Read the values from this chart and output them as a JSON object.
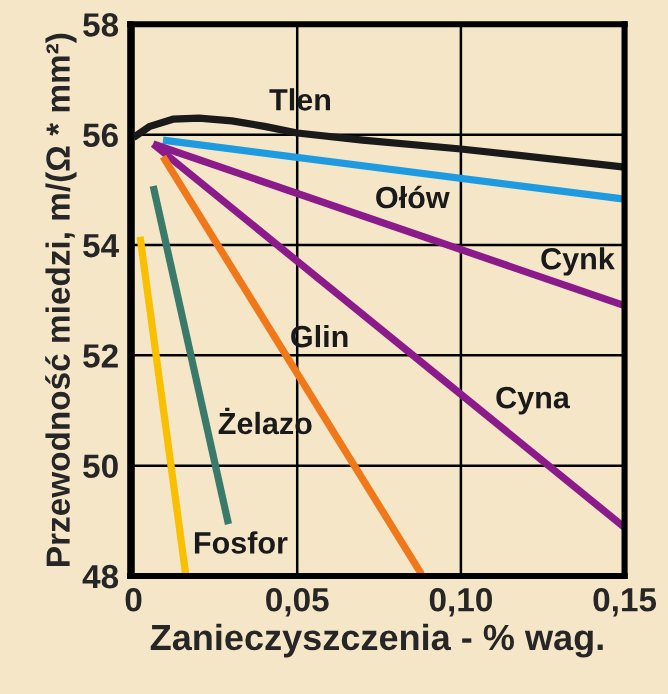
{
  "chart_data": {
    "type": "line",
    "xlabel": "Zanieczyszczenia - % wag.",
    "ylabel": "Przewodność miedzi, m/(Ω * mm²)",
    "xlim": [
      -0.001,
      0.15
    ],
    "ylim": [
      48,
      58
    ],
    "xticks": [
      {
        "value": 0,
        "label": "0"
      },
      {
        "value": 0.05,
        "label": "0,05"
      },
      {
        "value": 0.1,
        "label": "0,10"
      },
      {
        "value": 0.15,
        "label": "0,15"
      }
    ],
    "yticks": [
      48,
      50,
      52,
      54,
      56,
      58
    ],
    "grid": true,
    "legend": false,
    "marker": "none",
    "line_style": "solid",
    "series": [
      {
        "name": "Tlen",
        "color": "#1a1a1a",
        "x": [
          0,
          0.005,
          0.012,
          0.02,
          0.03,
          0.04,
          0.05,
          0.07,
          0.1,
          0.15
        ],
        "values": [
          55.95,
          56.15,
          56.28,
          56.3,
          56.25,
          56.15,
          56.03,
          55.9,
          55.74,
          55.41
        ]
      },
      {
        "name": "Ołów",
        "color": "#1e9be0",
        "x": [
          0.009,
          0.15
        ],
        "values": [
          55.9,
          54.83
        ]
      },
      {
        "name": "Cynk",
        "color": "#8b1a8b",
        "x": [
          0.006,
          0.15
        ],
        "values": [
          55.83,
          52.9
        ]
      },
      {
        "name": "Cyna",
        "color": "#8b1a8b",
        "x": [
          0.006,
          0.15
        ],
        "values": [
          55.83,
          48.88
        ]
      },
      {
        "name": "Glin",
        "color": "#f07818",
        "x": [
          0.009,
          0.088
        ],
        "values": [
          55.6,
          48.03
        ]
      },
      {
        "name": "Żelazo",
        "color": "#3a7a6a",
        "x": [
          0.006,
          0.029
        ],
        "values": [
          55.07,
          48.94
        ]
      },
      {
        "name": "Fosfor",
        "color": "#f8c000",
        "x": [
          0.002,
          0.016
        ],
        "values": [
          54.15,
          48.0
        ]
      }
    ]
  }
}
